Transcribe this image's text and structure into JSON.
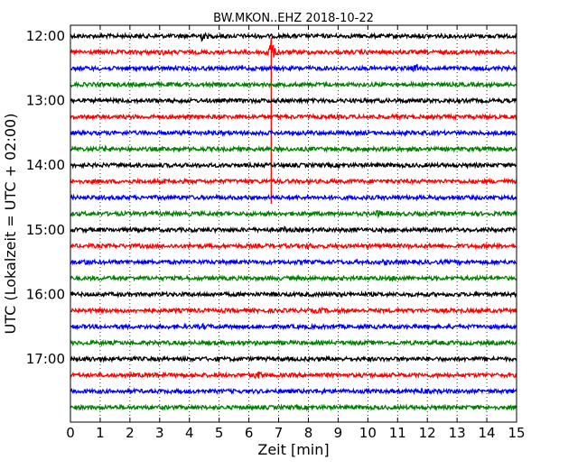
{
  "chart_data": {
    "type": "line",
    "title": "BW.MKON..EHZ 2018-10-22",
    "xlabel": "Zeit  [min]",
    "ylabel": "UTC (Lokalzeit = UTC + 02:00)",
    "xlim": [
      0,
      15
    ],
    "x_ticks": [
      "0",
      "1",
      "2",
      "3",
      "4",
      "5",
      "6",
      "7",
      "8",
      "9",
      "10",
      "11",
      "12",
      "13",
      "14",
      "15"
    ],
    "y_ticks": [
      "12:00",
      "13:00",
      "14:00",
      "15:00",
      "16:00",
      "17:00"
    ],
    "grid": "vertical dotted",
    "trace_colors": [
      "#000000",
      "#ff0000",
      "#0000ff",
      "#008000"
    ],
    "traces": [
      {
        "start": "12:00",
        "color": "#000000",
        "events": [
          {
            "t": 4.4,
            "amp": 1.4
          }
        ]
      },
      {
        "start": "12:15",
        "color": "#ff0000",
        "events": [
          {
            "t": 6.75,
            "amp": 14
          },
          {
            "t": 3.2,
            "amp": 0.5
          }
        ]
      },
      {
        "start": "12:30",
        "color": "#0000ff",
        "events": [
          {
            "t": 11.65,
            "amp": 0.9
          }
        ]
      },
      {
        "start": "12:45",
        "color": "#008000",
        "events": []
      },
      {
        "start": "13:00",
        "color": "#000000",
        "events": []
      },
      {
        "start": "13:15",
        "color": "#ff0000",
        "events": []
      },
      {
        "start": "13:30",
        "color": "#0000ff",
        "events": []
      },
      {
        "start": "13:45",
        "color": "#008000",
        "events": [
          {
            "t": 1.2,
            "amp": 0.4
          }
        ]
      },
      {
        "start": "14:00",
        "color": "#000000",
        "events": []
      },
      {
        "start": "14:15",
        "color": "#ff0000",
        "events": []
      },
      {
        "start": "14:30",
        "color": "#0000ff",
        "events": []
      },
      {
        "start": "14:45",
        "color": "#008000",
        "events": [
          {
            "t": 10.35,
            "amp": 0.7
          }
        ]
      },
      {
        "start": "15:00",
        "color": "#000000",
        "events": [
          {
            "t": 7.2,
            "amp": 0.4
          }
        ]
      },
      {
        "start": "15:15",
        "color": "#ff0000",
        "events": [
          {
            "t": 8.0,
            "amp": 0.5
          }
        ]
      },
      {
        "start": "15:30",
        "color": "#0000ff",
        "events": [
          {
            "t": 0.5,
            "amp": 0.6
          },
          {
            "t": 10.6,
            "amp": 0.4
          }
        ]
      },
      {
        "start": "15:45",
        "color": "#008000",
        "events": [
          {
            "t": 10.9,
            "amp": 0.4
          }
        ]
      },
      {
        "start": "16:00",
        "color": "#000000",
        "events": []
      },
      {
        "start": "16:15",
        "color": "#ff0000",
        "events": [
          {
            "t": 8.4,
            "amp": 0.5
          }
        ]
      },
      {
        "start": "16:30",
        "color": "#0000ff",
        "events": [
          {
            "t": 4.5,
            "amp": 0.5
          }
        ]
      },
      {
        "start": "16:45",
        "color": "#008000",
        "events": []
      },
      {
        "start": "17:00",
        "color": "#000000",
        "events": [
          {
            "t": 0.7,
            "amp": 0.4
          }
        ]
      },
      {
        "start": "17:15",
        "color": "#ff0000",
        "events": [
          {
            "t": 6.3,
            "amp": 1.0
          },
          {
            "t": 3.0,
            "amp": 0.4
          }
        ]
      },
      {
        "start": "17:30",
        "color": "#0000ff",
        "events": [
          {
            "t": 11.8,
            "amp": 0.6
          },
          {
            "t": 8.4,
            "amp": 0.4
          }
        ]
      },
      {
        "start": "17:45",
        "color": "#008000",
        "events": []
      }
    ]
  }
}
